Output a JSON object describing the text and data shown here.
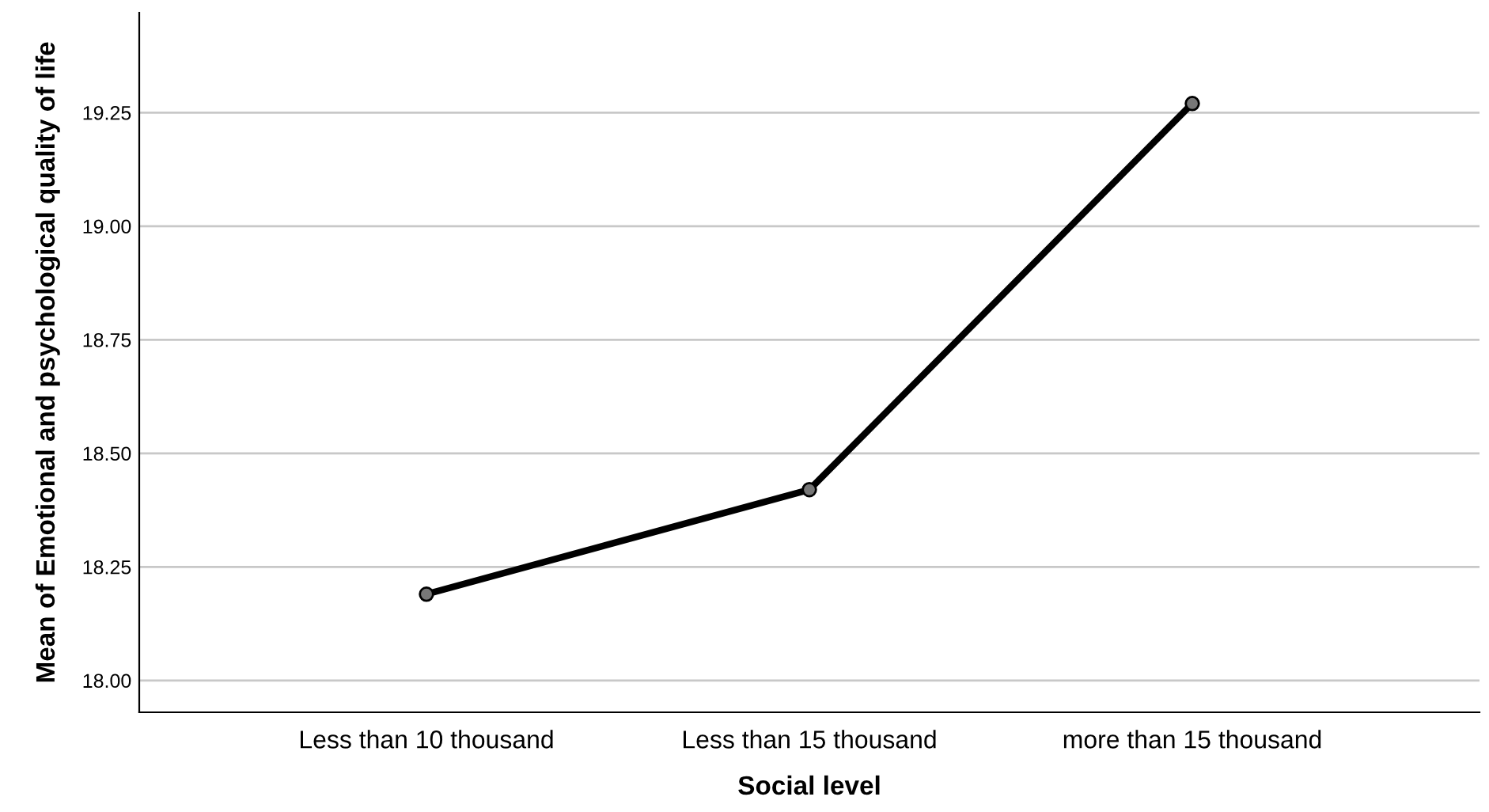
{
  "chart_data": {
    "type": "line",
    "xlabel": "Social level",
    "ylabel": "Mean of Emotional and psychological quality of life",
    "categories": [
      "Less than 10 thousand",
      "Less than 15 thousand",
      "more than 15 thousand"
    ],
    "series": [
      {
        "color": "#000000",
        "values": [
          18.19,
          18.42,
          19.27
        ]
      }
    ],
    "ylim": [
      17.93,
      19.47
    ],
    "yticks": [
      {
        "value": 18,
        "label": "18.00"
      },
      {
        "value": 18.25,
        "label": "18.25"
      },
      {
        "value": 18.5,
        "label": "18.50"
      },
      {
        "value": 18.75,
        "label": "18.75"
      },
      {
        "value": 19,
        "label": "19.00"
      },
      {
        "value": 19.25,
        "label": "19.25"
      }
    ],
    "grid": "y",
    "marker": "circle",
    "line_style": "solid",
    "legend": false
  }
}
